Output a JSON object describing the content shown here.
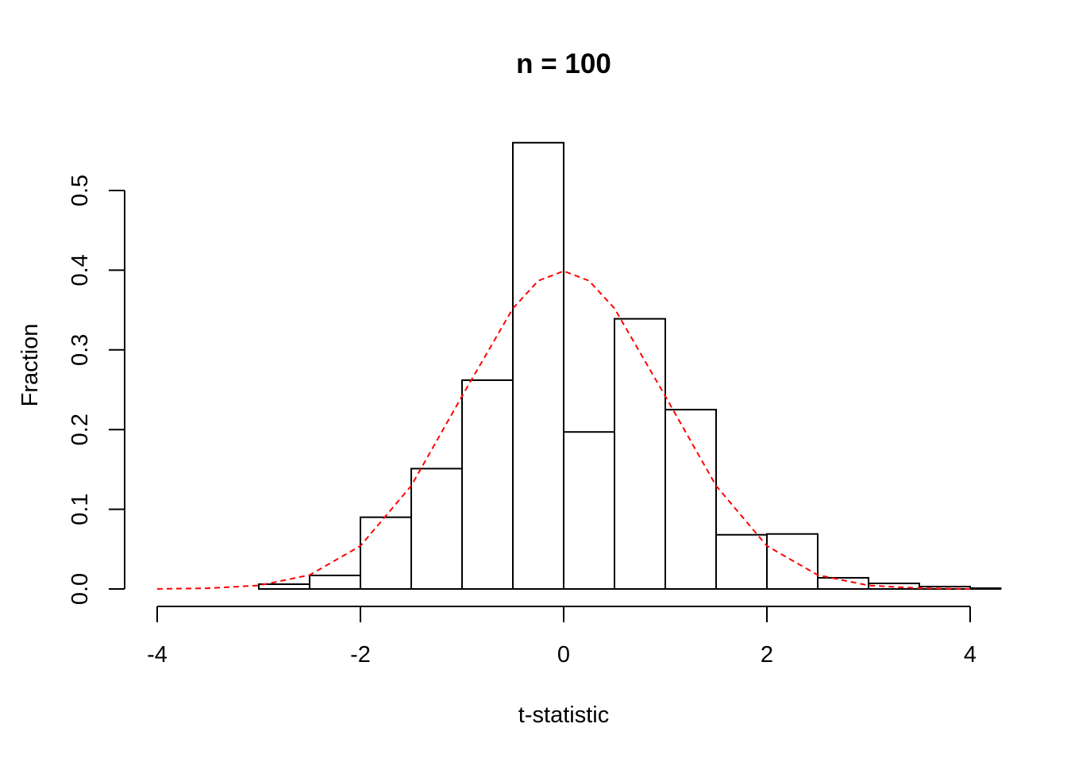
{
  "chart_data": {
    "type": "bar",
    "title": "n = 100",
    "xlabel": "t-statistic",
    "ylabel": "Fraction",
    "xlim": [
      -4,
      4.3
    ],
    "ylim": [
      0,
      0.55
    ],
    "x_ticks": [
      -4,
      -2,
      0,
      2,
      4
    ],
    "y_ticks": [
      "0.0",
      "0.1",
      "0.2",
      "0.3",
      "0.4",
      "0.5"
    ],
    "bin_edges": [
      -3,
      -2.5,
      -2,
      -1.5,
      -1,
      -0.5,
      0,
      0.5,
      1,
      1.5,
      2,
      2.5,
      3,
      3.5,
      4,
      4.3
    ],
    "values": [
      0.006,
      0.017,
      0.09,
      0.151,
      0.262,
      0.56,
      0.197,
      0.339,
      0.225,
      0.068,
      0.069,
      0.014,
      0.007,
      0.003,
      0.001
    ],
    "bar_fill": "#ffffff",
    "bar_stroke": "#000000",
    "reference_curve": {
      "style": "dashed",
      "color": "#ff0000",
      "x": [
        -4,
        -3.5,
        -3,
        -2.5,
        -2,
        -1.5,
        -1,
        -0.5,
        -0.25,
        0,
        0.25,
        0.5,
        1,
        1.5,
        2,
        2.5,
        3,
        3.5,
        4
      ],
      "y": [
        0.0001,
        0.0009,
        0.0044,
        0.0175,
        0.054,
        0.1295,
        0.242,
        0.352,
        0.3867,
        0.3989,
        0.3867,
        0.352,
        0.242,
        0.1295,
        0.054,
        0.0175,
        0.0044,
        0.0009,
        0.0001
      ]
    },
    "grid": false,
    "legend": false
  }
}
